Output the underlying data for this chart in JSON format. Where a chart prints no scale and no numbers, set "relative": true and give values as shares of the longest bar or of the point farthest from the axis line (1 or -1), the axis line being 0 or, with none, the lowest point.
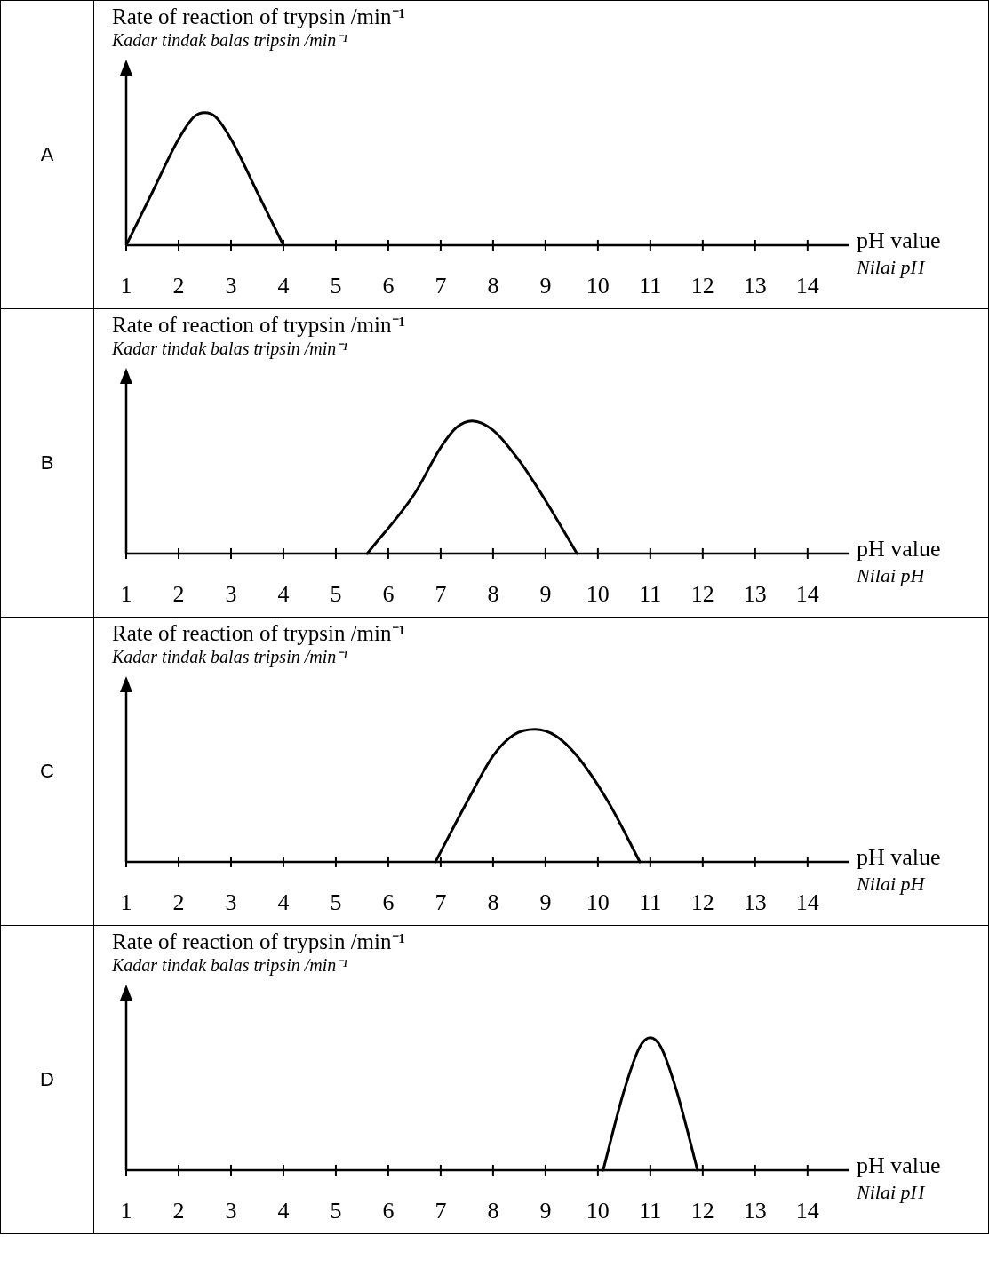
{
  "chart_data": [
    {
      "type": "line",
      "title": "A",
      "ylabel": "Rate of reaction of trypsin /min⁻¹\nKadar tindak balas tripsin /min⁻¹",
      "xlabel": "pH value\nNilai pH",
      "relative": true,
      "xlim": [
        1,
        14.8
      ],
      "xticks": [
        1,
        2,
        3,
        4,
        5,
        6,
        7,
        8,
        9,
        10,
        11,
        12,
        13,
        14
      ],
      "grid": false,
      "legend": false,
      "marker": "none",
      "line_style": "solid",
      "series": [
        {
          "color": "#000000",
          "x": [
            1,
            1.5,
            2,
            2.3,
            2.5,
            2.7,
            3,
            3.5,
            4
          ],
          "values": [
            0,
            0.4,
            0.8,
            0.97,
            1,
            0.97,
            0.8,
            0.4,
            0
          ]
        }
      ]
    },
    {
      "type": "line",
      "title": "B",
      "ylabel": "Rate of reaction of trypsin /min⁻¹\nKadar tindak balas tripsin /min⁻¹",
      "xlabel": "pH value\nNilai pH",
      "relative": true,
      "xlim": [
        1,
        14.8
      ],
      "xticks": [
        1,
        2,
        3,
        4,
        5,
        6,
        7,
        8,
        9,
        10,
        11,
        12,
        13,
        14
      ],
      "grid": false,
      "legend": false,
      "marker": "none",
      "line_style": "solid",
      "series": [
        {
          "color": "#000000",
          "x": [
            5.6,
            6.5,
            7,
            7.3,
            7.6,
            8,
            8.5,
            9,
            9.6
          ],
          "values": [
            0,
            0.45,
            0.8,
            0.95,
            1,
            0.93,
            0.7,
            0.4,
            0
          ]
        }
      ]
    },
    {
      "type": "line",
      "title": "C",
      "ylabel": "Rate of reaction of trypsin /min⁻¹\nKadar tindak balas tripsin /min⁻¹",
      "xlabel": "pH value\nNilai pH",
      "relative": true,
      "xlim": [
        1,
        14.8
      ],
      "xticks": [
        1,
        2,
        3,
        4,
        5,
        6,
        7,
        8,
        9,
        10,
        11,
        12,
        13,
        14
      ],
      "grid": false,
      "legend": false,
      "marker": "none",
      "line_style": "solid",
      "series": [
        {
          "color": "#000000",
          "x": [
            6.9,
            7.5,
            8,
            8.4,
            8.8,
            9.2,
            9.6,
            10.2,
            10.8
          ],
          "values": [
            0,
            0.45,
            0.8,
            0.96,
            1,
            0.95,
            0.8,
            0.45,
            0
          ]
        }
      ]
    },
    {
      "type": "line",
      "title": "D",
      "ylabel": "Rate of reaction of trypsin /min⁻¹\nKadar tindak balas tripsin /min⁻¹",
      "xlabel": "pH value\nNilai pH",
      "relative": true,
      "xlim": [
        1,
        14.8
      ],
      "xticks": [
        1,
        2,
        3,
        4,
        5,
        6,
        7,
        8,
        9,
        10,
        11,
        12,
        13,
        14
      ],
      "grid": false,
      "legend": false,
      "marker": "none",
      "line_style": "solid",
      "series": [
        {
          "color": "#000000",
          "x": [
            10.1,
            10.5,
            10.8,
            11,
            11.2,
            11.5,
            11.9
          ],
          "values": [
            0,
            0.6,
            0.93,
            1,
            0.93,
            0.6,
            0
          ]
        }
      ]
    }
  ]
}
